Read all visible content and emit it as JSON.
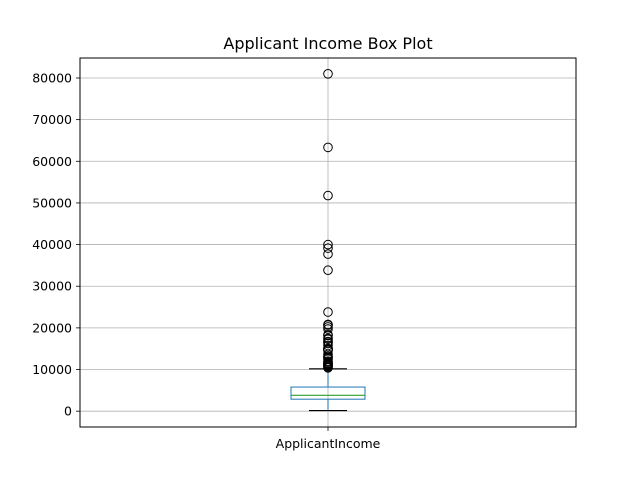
{
  "chart_data": {
    "type": "box",
    "title": "Applicant Income Box Plot",
    "xlabel": "",
    "ylabel": "",
    "categories": [
      "ApplicantIncome"
    ],
    "ylim": [
      -3800,
      84800
    ],
    "yticks": [
      0,
      10000,
      20000,
      30000,
      40000,
      50000,
      60000,
      70000,
      80000
    ],
    "ytick_labels": [
      "0",
      "10000",
      "20000",
      "30000",
      "40000",
      "50000",
      "60000",
      "70000",
      "80000"
    ],
    "grid": true,
    "box": {
      "whisker_low": 150,
      "q1": 2878,
      "median": 3812,
      "q3": 5795,
      "whisker_high": 10171
    },
    "outliers": [
      81000,
      63337,
      51763,
      39999,
      39147,
      37719,
      33846,
      23803,
      20833,
      20667,
      20233,
      19730,
      18333,
      18165,
      17500,
      17263,
      16692,
      16667,
      16250,
      15759,
      15000,
      14999,
      14880,
      14866,
      14683,
      14583,
      13650,
      13262,
      12876,
      12841,
      12500,
      12000,
      11757,
      11500,
      11417,
      11250,
      11146,
      11000,
      10833,
      10750,
      10513,
      10408
    ],
    "colors": {
      "box": "#1f77b4",
      "median": "#2ca02c",
      "whisker": "#1f77b4",
      "cap": "#000000",
      "flier": "#000000",
      "grid": "#b0b0b0"
    }
  }
}
